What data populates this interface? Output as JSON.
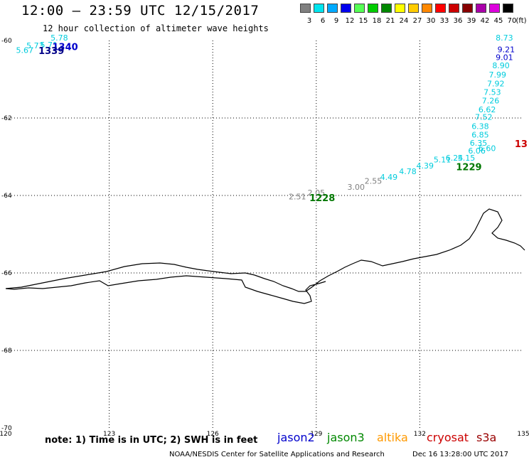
{
  "header": {
    "title": "12:00 – 23:59 UTC 12/15/2017",
    "subtitle": "12 hour collection of altimeter wave heights"
  },
  "color_scale": {
    "unit": "(ft)",
    "bins": [
      {
        "label": "3",
        "color": "#808080"
      },
      {
        "label": "6",
        "color": "#00e5ee"
      },
      {
        "label": "9",
        "color": "#00aaff"
      },
      {
        "label": "12",
        "color": "#0000ee"
      },
      {
        "label": "15",
        "color": "#55ff55"
      },
      {
        "label": "18",
        "color": "#00cc00"
      },
      {
        "label": "21",
        "color": "#008800"
      },
      {
        "label": "24",
        "color": "#ffff00"
      },
      {
        "label": "27",
        "color": "#ffcc00"
      },
      {
        "label": "30",
        "color": "#ff8800"
      },
      {
        "label": "33",
        "color": "#ff0000"
      },
      {
        "label": "36",
        "color": "#cc0000"
      },
      {
        "label": "39",
        "color": "#880000"
      },
      {
        "label": "42",
        "color": "#aa00aa"
      },
      {
        "label": "45",
        "color": "#dd00dd"
      },
      {
        "label": "70",
        "color": "#000000"
      }
    ]
  },
  "map": {
    "lon_range": [
      120,
      135
    ],
    "lat_range": [
      -60,
      -70
    ],
    "lon_ticks": [
      "120",
      "123",
      "126",
      "129",
      "132",
      "135"
    ],
    "lat_ticks": [
      "-60",
      "-62",
      "-64",
      "-66",
      "-68",
      "-70"
    ],
    "grid": true
  },
  "observations": [
    {
      "lon": 120.3,
      "lat": -60.32,
      "value": "5.67",
      "color": "#00ccdd"
    },
    {
      "lon": 120.6,
      "lat": -60.2,
      "value": "5.73",
      "color": "#00ccdd"
    },
    {
      "lon": 121.0,
      "lat": -60.18,
      "value": "5.71",
      "color": "#00ccdd"
    },
    {
      "lon": 121.3,
      "lat": -60.0,
      "value": "5.78",
      "color": "#00ccdd"
    },
    {
      "lon": 121.35,
      "lat": -60.25,
      "value": "1340",
      "color": "#0000cc",
      "time": true
    },
    {
      "lon": 120.95,
      "lat": -60.35,
      "value": "1339",
      "color": "#000088",
      "time": true
    },
    {
      "lon": 134.2,
      "lat": -60.0,
      "value": "8.73",
      "color": "#00ccdd"
    },
    {
      "lon": 134.25,
      "lat": -60.3,
      "value": "9.21",
      "color": "#0000cc"
    },
    {
      "lon": 134.2,
      "lat": -60.5,
      "value": "9.01",
      "color": "#0000cc"
    },
    {
      "lon": 134.1,
      "lat": -60.72,
      "value": "8.90",
      "color": "#00ccdd"
    },
    {
      "lon": 134.0,
      "lat": -60.95,
      "value": "7.99",
      "color": "#00ccdd"
    },
    {
      "lon": 133.95,
      "lat": -61.18,
      "value": "7.92",
      "color": "#00ccdd"
    },
    {
      "lon": 133.85,
      "lat": -61.4,
      "value": "7.53",
      "color": "#00ccdd"
    },
    {
      "lon": 133.8,
      "lat": -61.62,
      "value": "7.26",
      "color": "#00ccdd"
    },
    {
      "lon": 133.7,
      "lat": -61.85,
      "value": "6.62",
      "color": "#00ccdd"
    },
    {
      "lon": 133.6,
      "lat": -62.05,
      "value": "7.52",
      "color": "#00ccdd"
    },
    {
      "lon": 133.5,
      "lat": -62.28,
      "value": "6.38",
      "color": "#00ccdd"
    },
    {
      "lon": 133.5,
      "lat": -62.5,
      "value": "6.85",
      "color": "#00ccdd"
    },
    {
      "lon": 133.45,
      "lat": -62.72,
      "value": "6.35",
      "color": "#00ccdd"
    },
    {
      "lon": 133.7,
      "lat": -62.85,
      "value": "6.60",
      "color": "#00ccdd"
    },
    {
      "lon": 133.4,
      "lat": -62.92,
      "value": "6.06",
      "color": "#00ccdd"
    },
    {
      "lon": 133.1,
      "lat": -63.1,
      "value": "5.15",
      "color": "#00ccdd"
    },
    {
      "lon": 132.75,
      "lat": -63.1,
      "value": "6.24",
      "color": "#00ccdd"
    },
    {
      "lon": 132.4,
      "lat": -63.15,
      "value": "5.11",
      "color": "#00ccdd"
    },
    {
      "lon": 131.9,
      "lat": -63.3,
      "value": "4.39",
      "color": "#00ccdd"
    },
    {
      "lon": 131.4,
      "lat": -63.45,
      "value": "4.78",
      "color": "#00ccdd"
    },
    {
      "lon": 130.85,
      "lat": -63.6,
      "value": "4.49",
      "color": "#00ccdd"
    },
    {
      "lon": 130.4,
      "lat": -63.7,
      "value": "2.55",
      "color": "#808080"
    },
    {
      "lon": 129.9,
      "lat": -63.85,
      "value": "3.00",
      "color": "#808080"
    },
    {
      "lon": 128.75,
      "lat": -64.0,
      "value": "2.05",
      "color": "#808080"
    },
    {
      "lon": 128.2,
      "lat": -64.1,
      "value": "2.51",
      "color": "#808080"
    },
    {
      "lon": 128.8,
      "lat": -64.15,
      "value": "1228",
      "color": "#007700",
      "time": true
    },
    {
      "lon": 133.05,
      "lat": -63.35,
      "value": "1229",
      "color": "#007700",
      "time": true
    },
    {
      "lon": 134.75,
      "lat": -62.75,
      "value": "13",
      "color": "#cc0000",
      "time": true
    }
  ],
  "footer": {
    "note": "note: 1) Time is in UTC; 2) SWH is in feet",
    "satellites": [
      {
        "name": "jason2",
        "color": "#0000cc"
      },
      {
        "name": "jason3",
        "color": "#008800"
      },
      {
        "name": "altika",
        "color": "#ff9900"
      },
      {
        "name": "cryosat",
        "color": "#cc0000"
      },
      {
        "name": "s3a",
        "color": "#990000"
      }
    ],
    "credit": "NOAA/NESDIS Center for Satellite Applications and Research",
    "timestamp": "Dec 16 13:28:00 UTC 2017"
  }
}
